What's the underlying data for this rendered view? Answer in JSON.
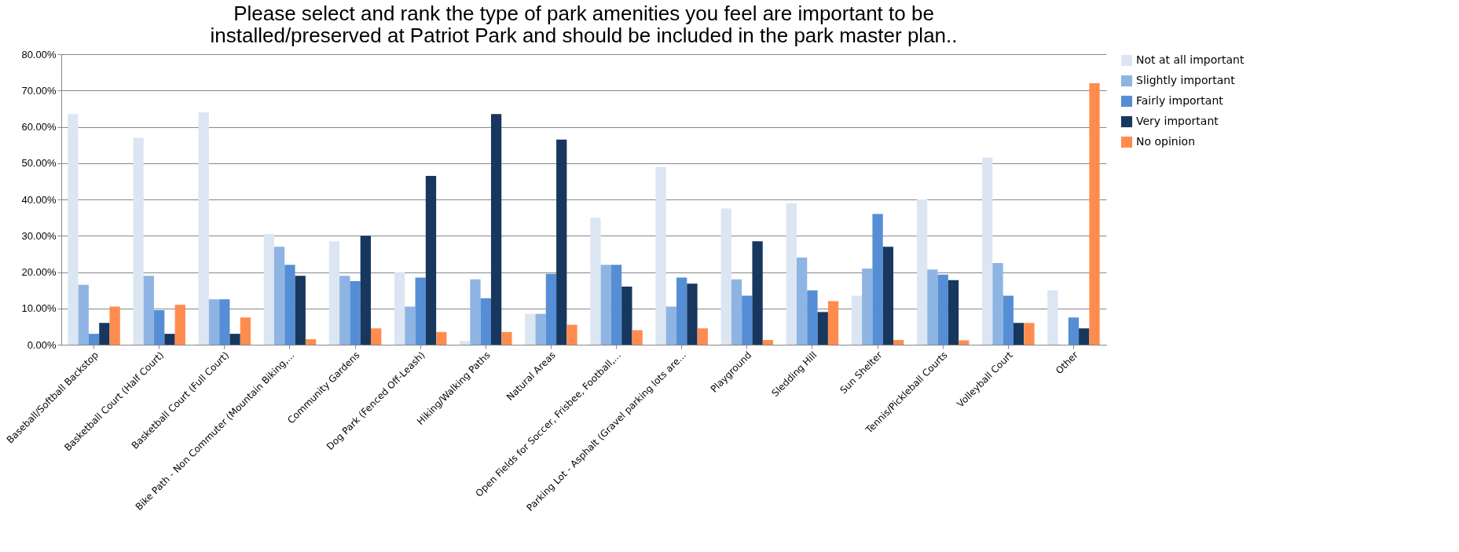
{
  "chart_data": {
    "type": "bar",
    "title": [
      "Please select and rank the type of park amenities you feel are important to be",
      "installed/preserved at Patriot Park and should be included in the park master plan.."
    ],
    "categories": [
      "Baseball/Softball Backstop",
      "Basketball Court (Half Court)",
      "Basketball Court (Full Court)",
      "Bike Path - Non Commuter (Mountain Biking,...",
      "Community Gardens",
      "Dog Park (Fenced Off-Leash)",
      "Hiking/Walking Paths",
      "Natural Areas",
      "Open Fields for Soccer, Frisbee, Football,...",
      "Parking Lot - Asphalt (Gravel parking lots are...",
      "Playground",
      "Sledding Hill",
      "Sun Shelter",
      "Tennis/Pickleball Courts",
      "Volleyball Court",
      "Other"
    ],
    "series": [
      {
        "name": "Not at all important",
        "color": "#dce6f2",
        "values": [
          63.5,
          57,
          64,
          30.5,
          28.5,
          20,
          1,
          8.5,
          35,
          49,
          37.5,
          39,
          13.5,
          40,
          51.5,
          15
        ]
      },
      {
        "name": "Slightly important",
        "color": "#8eb4e3",
        "values": [
          16.5,
          19,
          12.5,
          27,
          19,
          10.5,
          18,
          8.5,
          22,
          10.5,
          18,
          24,
          21,
          20.7,
          22.5,
          0
        ]
      },
      {
        "name": "Fairly important",
        "color": "#558ed5",
        "values": [
          3,
          9.5,
          12.5,
          22,
          17.5,
          18.5,
          12.8,
          19.5,
          22,
          18.5,
          13.5,
          15,
          36,
          19.3,
          13.5,
          7.5
        ]
      },
      {
        "name": "Very important",
        "color": "#17375e",
        "values": [
          6,
          3,
          3,
          19,
          30,
          46.5,
          63.5,
          56.5,
          16,
          16.8,
          28.5,
          9,
          27,
          17.8,
          6,
          4.5
        ]
      },
      {
        "name": "No opinion",
        "color": "#ff8c4f",
        "values": [
          10.5,
          11,
          7.5,
          1.5,
          4.5,
          3.5,
          3.5,
          5.5,
          4,
          4.5,
          1.3,
          12,
          1.3,
          1.2,
          6,
          72
        ]
      }
    ],
    "ylim": [
      0,
      80
    ],
    "yticks": [
      {
        "value": 0,
        "label": "0.00%"
      },
      {
        "value": 10,
        "label": "10.00%"
      },
      {
        "value": 20,
        "label": "20.00%"
      },
      {
        "value": 30,
        "label": "30.00%"
      },
      {
        "value": 40,
        "label": "40.00%"
      },
      {
        "value": 50,
        "label": "50.00%"
      },
      {
        "value": 60,
        "label": "60.00%"
      },
      {
        "value": 70,
        "label": "70.00%"
      },
      {
        "value": 80,
        "label": "80.00%"
      }
    ],
    "grid": "y",
    "legend": "right"
  }
}
